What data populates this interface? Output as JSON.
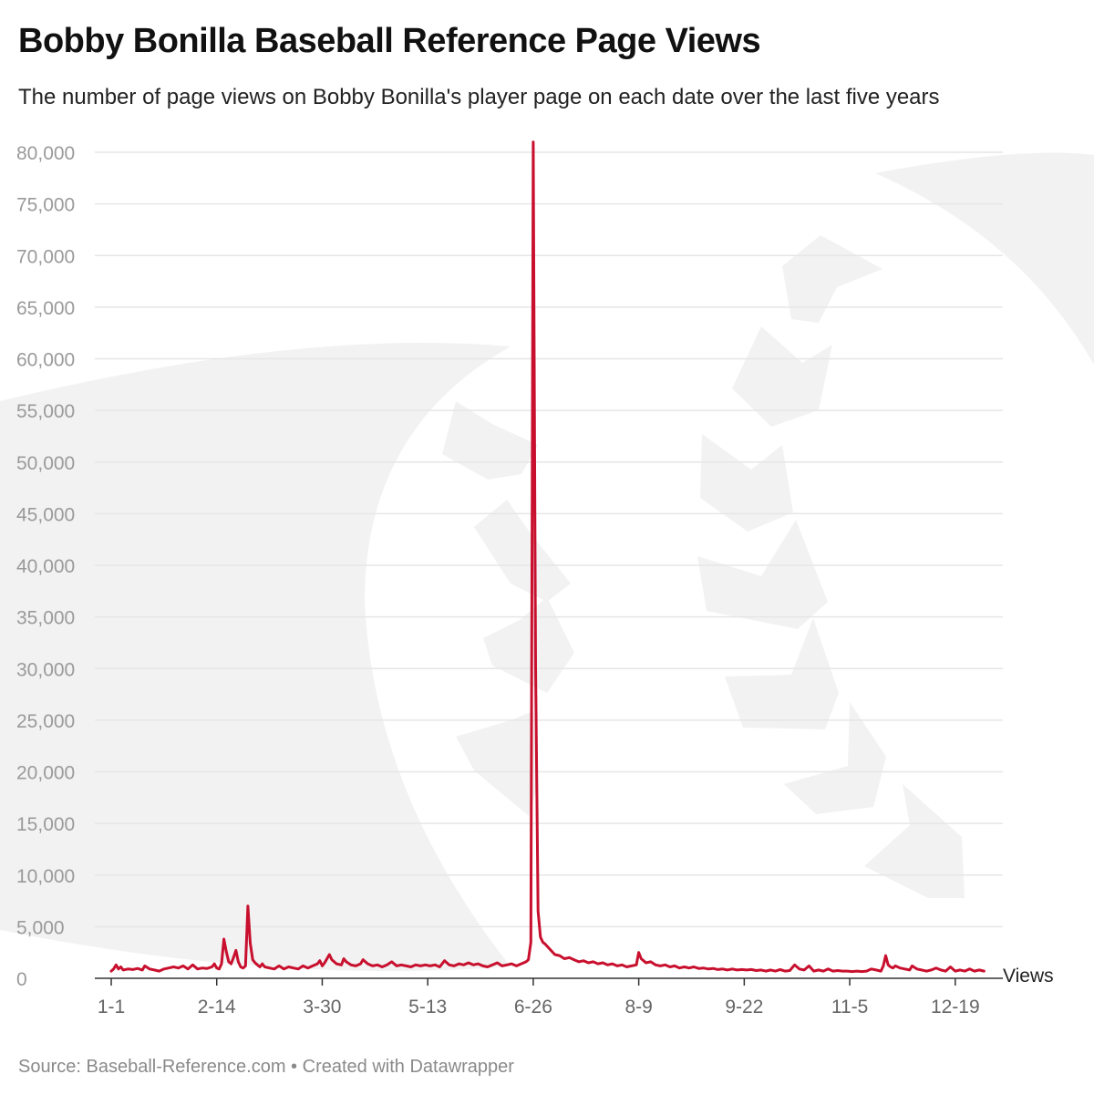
{
  "chart_data": {
    "type": "line",
    "title": "Bobby Bonilla Baseball Reference Page Views",
    "subtitle": "The number of page views on Bobby Bonilla's player page on each date over the last five years",
    "xlabel": "",
    "ylabel": "",
    "x_tick_labels": [
      "1-1",
      "2-14",
      "3-30",
      "5-13",
      "6-26",
      "8-9",
      "9-22",
      "11-5",
      "12-19"
    ],
    "x_tick_days": [
      1,
      45,
      89,
      133,
      177,
      221,
      265,
      309,
      353
    ],
    "y_ticks": [
      0,
      5000,
      10000,
      15000,
      20000,
      25000,
      30000,
      35000,
      40000,
      45000,
      50000,
      55000,
      60000,
      65000,
      70000,
      75000,
      80000
    ],
    "y_tick_labels": [
      "0",
      "5,000",
      "10,000",
      "15,000",
      "20,000",
      "25,000",
      "30,000",
      "35,000",
      "40,000",
      "45,000",
      "50,000",
      "55,000",
      "60,000",
      "65,000",
      "70,000",
      "75,000",
      "80,000"
    ],
    "ylim": [
      0,
      81000
    ],
    "xlim": [
      1,
      366
    ],
    "grid": true,
    "legend": "none",
    "series": [
      {
        "name": "Views",
        "color": "#c8102e",
        "points": [
          [
            1,
            700
          ],
          [
            2,
            900
          ],
          [
            3,
            1300
          ],
          [
            4,
            900
          ],
          [
            5,
            1100
          ],
          [
            6,
            800
          ],
          [
            8,
            900
          ],
          [
            10,
            850
          ],
          [
            12,
            950
          ],
          [
            14,
            800
          ],
          [
            15,
            1200
          ],
          [
            17,
            900
          ],
          [
            19,
            800
          ],
          [
            21,
            700
          ],
          [
            23,
            900
          ],
          [
            25,
            1000
          ],
          [
            27,
            1100
          ],
          [
            29,
            1000
          ],
          [
            31,
            1200
          ],
          [
            33,
            900
          ],
          [
            35,
            1300
          ],
          [
            37,
            900
          ],
          [
            39,
            1000
          ],
          [
            41,
            950
          ],
          [
            43,
            1100
          ],
          [
            44,
            1400
          ],
          [
            45,
            1000
          ],
          [
            46,
            900
          ],
          [
            47,
            1400
          ],
          [
            48,
            3800
          ],
          [
            49,
            2600
          ],
          [
            50,
            1600
          ],
          [
            51,
            1400
          ],
          [
            52,
            2000
          ],
          [
            53,
            2700
          ],
          [
            54,
            1600
          ],
          [
            55,
            1100
          ],
          [
            56,
            1000
          ],
          [
            57,
            1200
          ],
          [
            58,
            7000
          ],
          [
            59,
            3400
          ],
          [
            60,
            1800
          ],
          [
            61,
            1500
          ],
          [
            62,
            1300
          ],
          [
            63,
            1100
          ],
          [
            64,
            1400
          ],
          [
            65,
            1100
          ],
          [
            67,
            1000
          ],
          [
            69,
            900
          ],
          [
            71,
            1200
          ],
          [
            73,
            900
          ],
          [
            75,
            1100
          ],
          [
            77,
            1000
          ],
          [
            79,
            900
          ],
          [
            81,
            1200
          ],
          [
            83,
            1000
          ],
          [
            85,
            1200
          ],
          [
            87,
            1400
          ],
          [
            88,
            1700
          ],
          [
            89,
            1200
          ],
          [
            90,
            1500
          ],
          [
            91,
            1900
          ],
          [
            92,
            2300
          ],
          [
            93,
            1800
          ],
          [
            95,
            1400
          ],
          [
            97,
            1300
          ],
          [
            98,
            1900
          ],
          [
            99,
            1600
          ],
          [
            101,
            1300
          ],
          [
            103,
            1200
          ],
          [
            105,
            1400
          ],
          [
            106,
            1800
          ],
          [
            108,
            1400
          ],
          [
            110,
            1200
          ],
          [
            112,
            1300
          ],
          [
            114,
            1100
          ],
          [
            116,
            1300
          ],
          [
            118,
            1600
          ],
          [
            120,
            1200
          ],
          [
            122,
            1300
          ],
          [
            124,
            1200
          ],
          [
            126,
            1100
          ],
          [
            128,
            1300
          ],
          [
            130,
            1200
          ],
          [
            132,
            1300
          ],
          [
            134,
            1200
          ],
          [
            136,
            1300
          ],
          [
            138,
            1100
          ],
          [
            140,
            1700
          ],
          [
            142,
            1300
          ],
          [
            144,
            1200
          ],
          [
            146,
            1400
          ],
          [
            148,
            1300
          ],
          [
            150,
            1500
          ],
          [
            152,
            1300
          ],
          [
            154,
            1400
          ],
          [
            156,
            1200
          ],
          [
            158,
            1100
          ],
          [
            160,
            1300
          ],
          [
            162,
            1500
          ],
          [
            164,
            1200
          ],
          [
            166,
            1300
          ],
          [
            168,
            1400
          ],
          [
            170,
            1200
          ],
          [
            172,
            1400
          ],
          [
            174,
            1600
          ],
          [
            175,
            1800
          ],
          [
            176,
            3500
          ],
          [
            177,
            81000
          ],
          [
            178,
            30000
          ],
          [
            179,
            6500
          ],
          [
            180,
            4000
          ],
          [
            181,
            3500
          ],
          [
            182,
            3300
          ],
          [
            184,
            2800
          ],
          [
            186,
            2300
          ],
          [
            188,
            2200
          ],
          [
            190,
            1900
          ],
          [
            192,
            2000
          ],
          [
            194,
            1800
          ],
          [
            196,
            1600
          ],
          [
            198,
            1700
          ],
          [
            200,
            1500
          ],
          [
            202,
            1600
          ],
          [
            204,
            1400
          ],
          [
            206,
            1500
          ],
          [
            208,
            1300
          ],
          [
            210,
            1400
          ],
          [
            212,
            1200
          ],
          [
            214,
            1300
          ],
          [
            216,
            1100
          ],
          [
            218,
            1200
          ],
          [
            220,
            1300
          ],
          [
            221,
            2500
          ],
          [
            222,
            1900
          ],
          [
            223,
            1700
          ],
          [
            224,
            1500
          ],
          [
            226,
            1600
          ],
          [
            228,
            1300
          ],
          [
            230,
            1200
          ],
          [
            232,
            1300
          ],
          [
            234,
            1100
          ],
          [
            236,
            1200
          ],
          [
            238,
            1000
          ],
          [
            240,
            1100
          ],
          [
            242,
            1000
          ],
          [
            244,
            1100
          ],
          [
            246,
            950
          ],
          [
            248,
            1000
          ],
          [
            250,
            900
          ],
          [
            252,
            950
          ],
          [
            254,
            850
          ],
          [
            256,
            900
          ],
          [
            258,
            800
          ],
          [
            260,
            900
          ],
          [
            262,
            800
          ],
          [
            264,
            850
          ],
          [
            266,
            800
          ],
          [
            268,
            850
          ],
          [
            270,
            750
          ],
          [
            272,
            800
          ],
          [
            274,
            700
          ],
          [
            276,
            800
          ],
          [
            278,
            700
          ],
          [
            280,
            850
          ],
          [
            282,
            700
          ],
          [
            284,
            750
          ],
          [
            286,
            1300
          ],
          [
            288,
            900
          ],
          [
            290,
            800
          ],
          [
            292,
            1200
          ],
          [
            294,
            700
          ],
          [
            296,
            800
          ],
          [
            298,
            700
          ],
          [
            300,
            900
          ],
          [
            302,
            700
          ],
          [
            304,
            750
          ],
          [
            306,
            700
          ],
          [
            308,
            700
          ],
          [
            310,
            650
          ],
          [
            312,
            700
          ],
          [
            314,
            650
          ],
          [
            316,
            700
          ],
          [
            318,
            900
          ],
          [
            320,
            800
          ],
          [
            322,
            700
          ],
          [
            323,
            1200
          ],
          [
            324,
            2200
          ],
          [
            325,
            1300
          ],
          [
            326,
            1100
          ],
          [
            327,
            1000
          ],
          [
            328,
            1200
          ],
          [
            330,
            1000
          ],
          [
            332,
            900
          ],
          [
            334,
            800
          ],
          [
            335,
            1200
          ],
          [
            337,
            900
          ],
          [
            339,
            800
          ],
          [
            341,
            700
          ],
          [
            343,
            800
          ],
          [
            345,
            1000
          ],
          [
            347,
            800
          ],
          [
            349,
            700
          ],
          [
            351,
            1100
          ],
          [
            353,
            700
          ],
          [
            355,
            800
          ],
          [
            357,
            700
          ],
          [
            359,
            900
          ],
          [
            361,
            700
          ],
          [
            363,
            800
          ],
          [
            365,
            700
          ]
        ]
      }
    ],
    "series_end_label": "Views"
  },
  "footer": {
    "source": "Source: Baseball-Reference.com",
    "separator": "•",
    "credit": "Created with Datawrapper"
  },
  "colors": {
    "line": "#c8102e",
    "grid": "#e6e6e6",
    "axis_text": "#9a9a9a",
    "watermark": "#f2f2f2"
  }
}
